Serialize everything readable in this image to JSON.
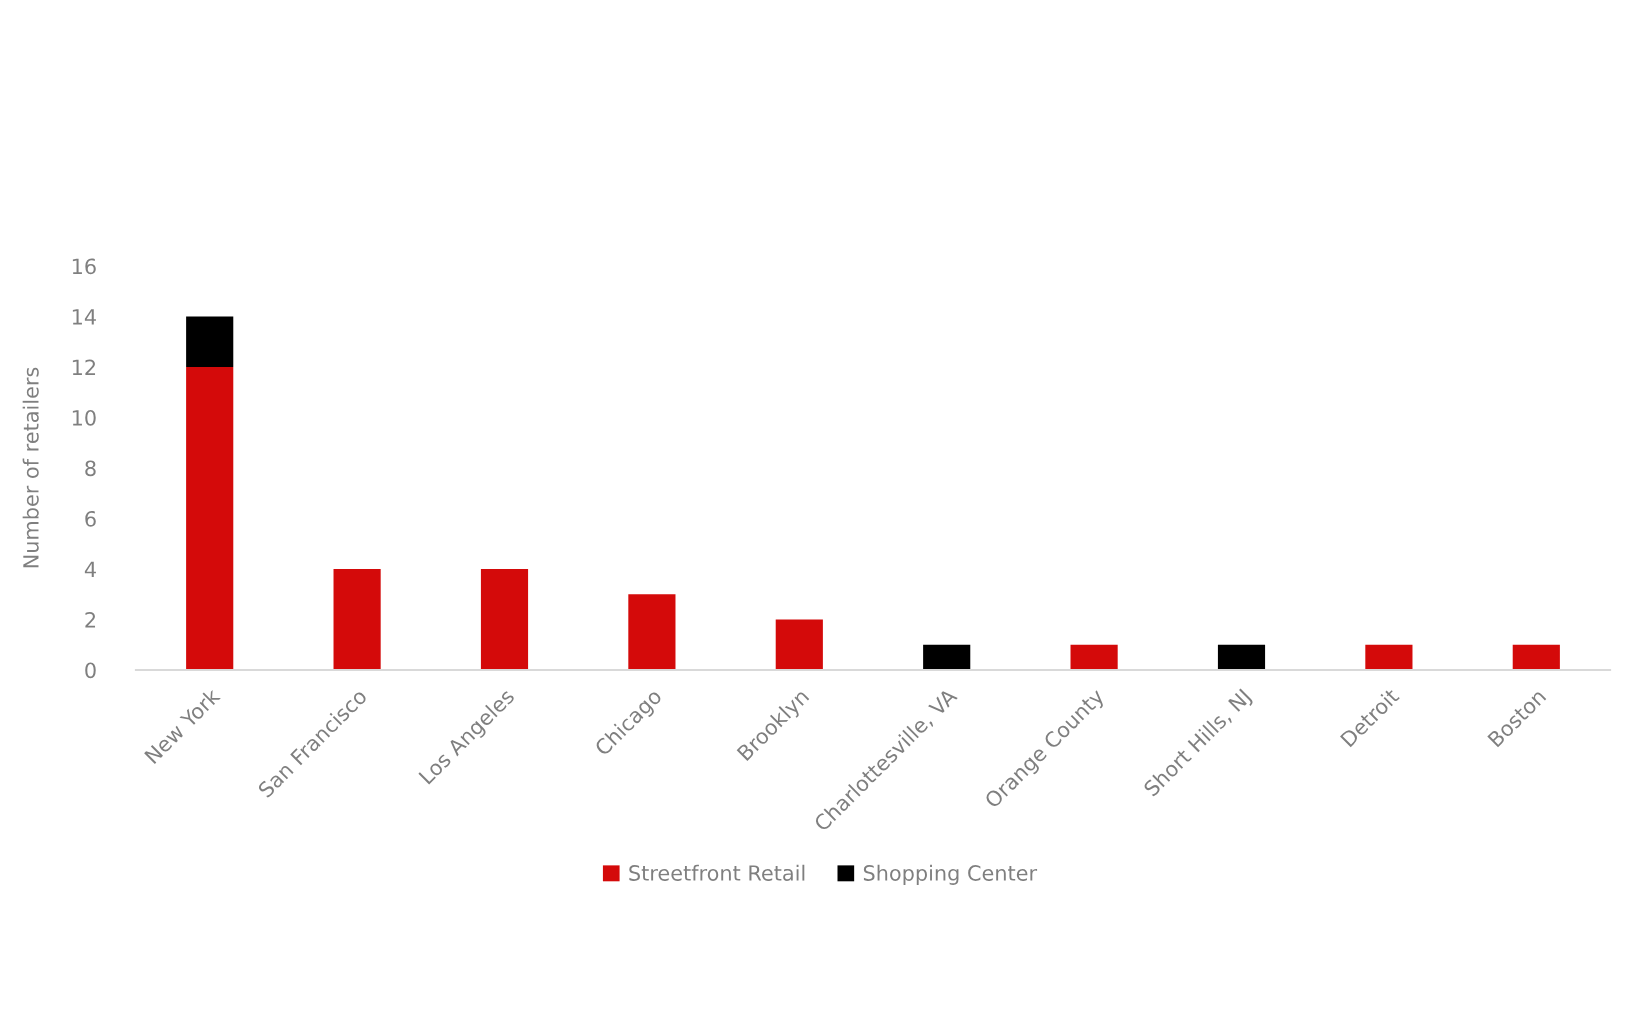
{
  "chart_data": {
    "type": "bar",
    "stacked": true,
    "ylabel": "Number of retailers",
    "categories": [
      "New York",
      "San Francisco",
      "Los Angeles",
      "Chicago",
      "Brooklyn",
      "Charlottesville, VA",
      "Orange County",
      "Short Hills, NJ",
      "Detroit",
      "Boston"
    ],
    "series": [
      {
        "name": "Streetfront Retail",
        "color": "#d40a0a",
        "values": [
          12,
          4,
          4,
          3,
          2,
          null,
          1,
          null,
          1,
          1
        ]
      },
      {
        "name": "Shopping Center",
        "color": "#000000",
        "values": [
          2,
          null,
          null,
          null,
          null,
          1,
          null,
          1,
          null,
          null
        ]
      }
    ],
    "ylim": [
      0,
      16
    ],
    "yticks": [
      0,
      2,
      4,
      6,
      8,
      10,
      12,
      14,
      16
    ],
    "grid": false,
    "legend": "bottom"
  }
}
